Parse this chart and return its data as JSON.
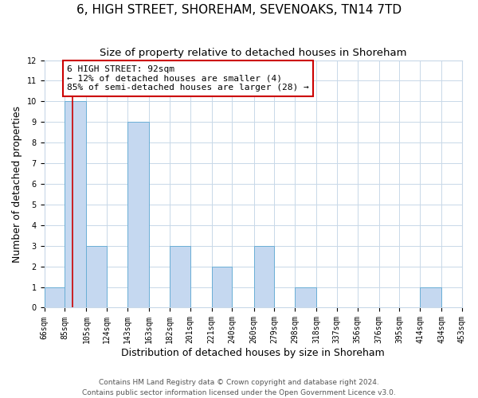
{
  "title": "6, HIGH STREET, SHOREHAM, SEVENOAKS, TN14 7TD",
  "subtitle": "Size of property relative to detached houses in Shoreham",
  "xlabel": "Distribution of detached houses by size in Shoreham",
  "ylabel": "Number of detached properties",
  "bins": [
    "66sqm",
    "85sqm",
    "105sqm",
    "124sqm",
    "143sqm",
    "163sqm",
    "182sqm",
    "201sqm",
    "221sqm",
    "240sqm",
    "260sqm",
    "279sqm",
    "298sqm",
    "318sqm",
    "337sqm",
    "356sqm",
    "376sqm",
    "395sqm",
    "414sqm",
    "434sqm",
    "453sqm"
  ],
  "counts": [
    1,
    10,
    3,
    0,
    9,
    0,
    3,
    0,
    2,
    0,
    3,
    0,
    1,
    0,
    0,
    0,
    0,
    0,
    1,
    0
  ],
  "bin_edges_values": [
    66,
    85,
    105,
    124,
    143,
    163,
    182,
    201,
    221,
    240,
    260,
    279,
    298,
    318,
    337,
    356,
    376,
    395,
    414,
    434,
    453
  ],
  "bar_color": "#c5d8f0",
  "bar_edge_color": "#6aaed6",
  "property_value": 92,
  "vline_color": "#cc0000",
  "annotation_line1": "6 HIGH STREET: 92sqm",
  "annotation_line2": "← 12% of detached houses are smaller (4)",
  "annotation_line3": "85% of semi-detached houses are larger (28) →",
  "annotation_box_edgecolor": "#cc0000",
  "ylim": [
    0,
    12
  ],
  "yticks": [
    0,
    1,
    2,
    3,
    4,
    5,
    6,
    7,
    8,
    9,
    10,
    11,
    12
  ],
  "footer_line1": "Contains HM Land Registry data © Crown copyright and database right 2024.",
  "footer_line2": "Contains public sector information licensed under the Open Government Licence v3.0.",
  "bg_color": "#ffffff",
  "grid_color": "#c8d8e8",
  "title_fontsize": 11,
  "subtitle_fontsize": 9.5,
  "axis_label_fontsize": 9,
  "tick_fontsize": 7,
  "annotation_fontsize": 8,
  "footer_fontsize": 6.5
}
